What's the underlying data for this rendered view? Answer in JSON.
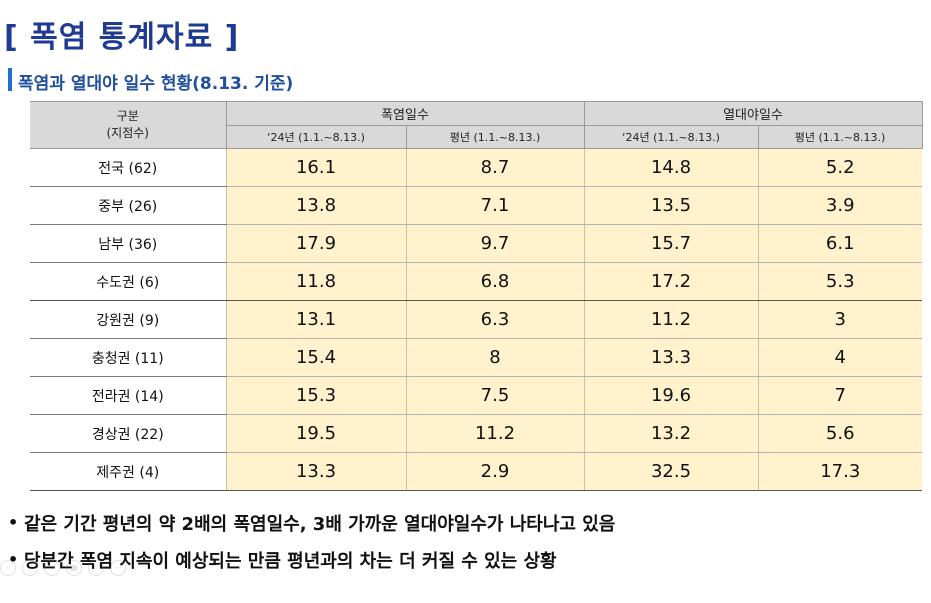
{
  "title": "[ 폭염 통계자료 ]",
  "subtitle": "폭염과 열대야 일수 현황(8.13. 기준)",
  "table": {
    "region_header_line1": "구분",
    "region_header_line2": "(지점수)",
    "group_headers": [
      "폭염일수",
      "열대야일수"
    ],
    "sub_headers": [
      "‘24년 (1.1.~8.13.)",
      "평년 (1.1.~8.13.)",
      "‘24년 (1.1.~8.13.)",
      "평년 (1.1.~8.13.)"
    ],
    "rows": [
      {
        "region": "전국 (62)",
        "values": [
          "16.1",
          "8.7",
          "14.8",
          "5.2"
        ]
      },
      {
        "region": "중부 (26)",
        "values": [
          "13.8",
          "7.1",
          "13.5",
          "3.9"
        ]
      },
      {
        "region": "남부 (36)",
        "values": [
          "17.9",
          "9.7",
          "15.7",
          "6.1"
        ]
      },
      {
        "region": "수도권 (6)",
        "values": [
          "11.8",
          "6.8",
          "17.2",
          "5.3"
        ]
      },
      {
        "region": "강원권 (9)",
        "values": [
          "13.1",
          "6.3",
          "11.2",
          "3"
        ]
      },
      {
        "region": "충청권 (11)",
        "values": [
          "15.4",
          "8",
          "13.3",
          "4"
        ]
      },
      {
        "region": "전라권 (14)",
        "values": [
          "15.3",
          "7.5",
          "19.6",
          "7"
        ]
      },
      {
        "region": "경상권 (22)",
        "values": [
          "19.5",
          "11.2",
          "13.2",
          "5.6"
        ]
      },
      {
        "region": "제주권 (4)",
        "values": [
          "13.3",
          "2.9",
          "32.5",
          "17.3"
        ]
      }
    ]
  },
  "bullets": [
    "같은 기간 평년의 약 2배의 폭염일수, 3배 가까운 열대야일수가 나타나고 있음",
    "당분간 폭염 지속이 예상되는 만큼 평년과의 차는 더 커질 수 있는 상황"
  ],
  "bullet_char": "•"
}
